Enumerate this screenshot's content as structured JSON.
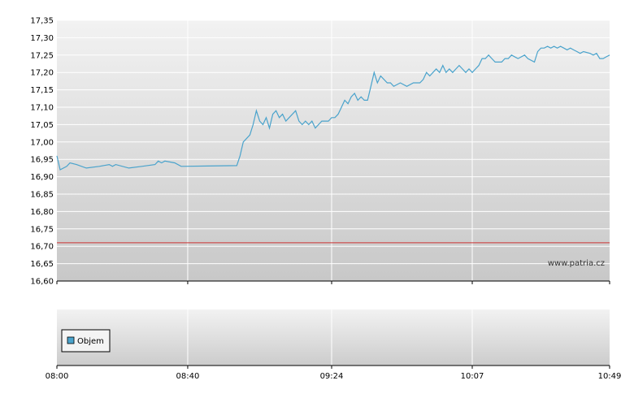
{
  "chart_data": [
    {
      "type": "line",
      "title": "",
      "xlabel": "",
      "ylabel": "",
      "grid": true,
      "ylim": [
        16.6,
        17.35
      ],
      "yticks": [
        "17,35",
        "17,30",
        "17,25",
        "17,20",
        "17,15",
        "17,10",
        "17,05",
        "17,00",
        "16,95",
        "16,90",
        "16,85",
        "16,80",
        "16,75",
        "16,70",
        "16,65",
        "16,60"
      ],
      "xticks": [
        "08:00",
        "08:40",
        "09:24",
        "10:07",
        "10:49"
      ],
      "reference_line": {
        "value": 16.71,
        "color": "#cc3333"
      },
      "series": [
        {
          "color": "#4aa3cc",
          "points": [
            [
              "08:00",
              16.96
            ],
            [
              "08:01",
              16.92
            ],
            [
              "08:03",
              16.93
            ],
            [
              "08:04",
              16.94
            ],
            [
              "08:06",
              16.935
            ],
            [
              "08:09",
              16.925
            ],
            [
              "08:13",
              16.93
            ],
            [
              "08:16",
              16.935
            ],
            [
              "08:17",
              16.93
            ],
            [
              "08:18",
              16.935
            ],
            [
              "08:22",
              16.925
            ],
            [
              "08:26",
              16.93
            ],
            [
              "08:30",
              16.935
            ],
            [
              "08:31",
              16.945
            ],
            [
              "08:32",
              16.94
            ],
            [
              "08:33",
              16.945
            ],
            [
              "08:36",
              16.94
            ],
            [
              "08:38",
              16.93
            ],
            [
              "08:55",
              16.932
            ],
            [
              "08:56",
              16.96
            ],
            [
              "08:57",
              17.0
            ],
            [
              "08:59",
              17.02
            ],
            [
              "09:00",
              17.05
            ],
            [
              "09:01",
              17.09
            ],
            [
              "09:02",
              17.06
            ],
            [
              "09:03",
              17.05
            ],
            [
              "09:04",
              17.07
            ],
            [
              "09:05",
              17.04
            ],
            [
              "09:06",
              17.08
            ],
            [
              "09:07",
              17.09
            ],
            [
              "09:08",
              17.07
            ],
            [
              "09:09",
              17.08
            ],
            [
              "09:10",
              17.06
            ],
            [
              "09:11",
              17.07
            ],
            [
              "09:12",
              17.08
            ],
            [
              "09:13",
              17.09
            ],
            [
              "09:14",
              17.06
            ],
            [
              "09:15",
              17.05
            ],
            [
              "09:16",
              17.06
            ],
            [
              "09:17",
              17.05
            ],
            [
              "09:18",
              17.06
            ],
            [
              "09:19",
              17.04
            ],
            [
              "09:20",
              17.05
            ],
            [
              "09:21",
              17.06
            ],
            [
              "09:23",
              17.06
            ],
            [
              "09:24",
              17.07
            ],
            [
              "09:25",
              17.07
            ],
            [
              "09:26",
              17.08
            ],
            [
              "09:27",
              17.1
            ],
            [
              "09:28",
              17.12
            ],
            [
              "09:29",
              17.11
            ],
            [
              "09:30",
              17.13
            ],
            [
              "09:31",
              17.14
            ],
            [
              "09:32",
              17.12
            ],
            [
              "09:33",
              17.13
            ],
            [
              "09:34",
              17.12
            ],
            [
              "09:35",
              17.12
            ],
            [
              "09:36",
              17.16
            ],
            [
              "09:37",
              17.2
            ],
            [
              "09:38",
              17.17
            ],
            [
              "09:39",
              17.19
            ],
            [
              "09:40",
              17.18
            ],
            [
              "09:41",
              17.17
            ],
            [
              "09:42",
              17.17
            ],
            [
              "09:43",
              17.16
            ],
            [
              "09:45",
              17.17
            ],
            [
              "09:47",
              17.16
            ],
            [
              "09:49",
              17.17
            ],
            [
              "09:51",
              17.17
            ],
            [
              "09:52",
              17.18
            ],
            [
              "09:53",
              17.2
            ],
            [
              "09:54",
              17.19
            ],
            [
              "09:55",
              17.2
            ],
            [
              "09:56",
              17.21
            ],
            [
              "09:57",
              17.2
            ],
            [
              "09:58",
              17.22
            ],
            [
              "09:59",
              17.2
            ],
            [
              "10:00",
              17.21
            ],
            [
              "10:01",
              17.2
            ],
            [
              "10:02",
              17.21
            ],
            [
              "10:03",
              17.22
            ],
            [
              "10:04",
              17.21
            ],
            [
              "10:05",
              17.2
            ],
            [
              "10:06",
              17.21
            ],
            [
              "10:07",
              17.2
            ],
            [
              "10:08",
              17.21
            ],
            [
              "10:09",
              17.22
            ],
            [
              "10:10",
              17.24
            ],
            [
              "10:11",
              17.24
            ],
            [
              "10:12",
              17.25
            ],
            [
              "10:13",
              17.24
            ],
            [
              "10:14",
              17.23
            ],
            [
              "10:16",
              17.23
            ],
            [
              "10:17",
              17.24
            ],
            [
              "10:18",
              17.24
            ],
            [
              "10:19",
              17.25
            ],
            [
              "10:21",
              17.24
            ],
            [
              "10:23",
              17.25
            ],
            [
              "10:24",
              17.24
            ],
            [
              "10:26",
              17.23
            ],
            [
              "10:27",
              17.26
            ],
            [
              "10:28",
              17.27
            ],
            [
              "10:29",
              17.27
            ],
            [
              "10:30",
              17.275
            ],
            [
              "10:31",
              17.27
            ],
            [
              "10:32",
              17.275
            ],
            [
              "10:33",
              17.27
            ],
            [
              "10:34",
              17.275
            ],
            [
              "10:35",
              17.27
            ],
            [
              "10:36",
              17.265
            ],
            [
              "10:37",
              17.27
            ],
            [
              "10:38",
              17.265
            ],
            [
              "10:39",
              17.26
            ],
            [
              "10:40",
              17.255
            ],
            [
              "10:41",
              17.26
            ],
            [
              "10:43",
              17.255
            ],
            [
              "10:44",
              17.25
            ],
            [
              "10:45",
              17.255
            ],
            [
              "10:46",
              17.24
            ],
            [
              "10:47",
              17.24
            ],
            [
              "10:48",
              17.245
            ],
            [
              "10:49",
              17.25
            ]
          ]
        }
      ]
    },
    {
      "type": "bar",
      "title": "",
      "xlabel": "",
      "ylabel": "",
      "grid": true,
      "xticks": [
        "08:00",
        "08:40",
        "09:24",
        "10:07",
        "10:49"
      ],
      "legend": {
        "placement": "bottom-left",
        "entries": [
          {
            "label": "Objem",
            "color": "#4aa3cc"
          }
        ]
      },
      "series": []
    }
  ],
  "watermark": "www.patria.cz"
}
